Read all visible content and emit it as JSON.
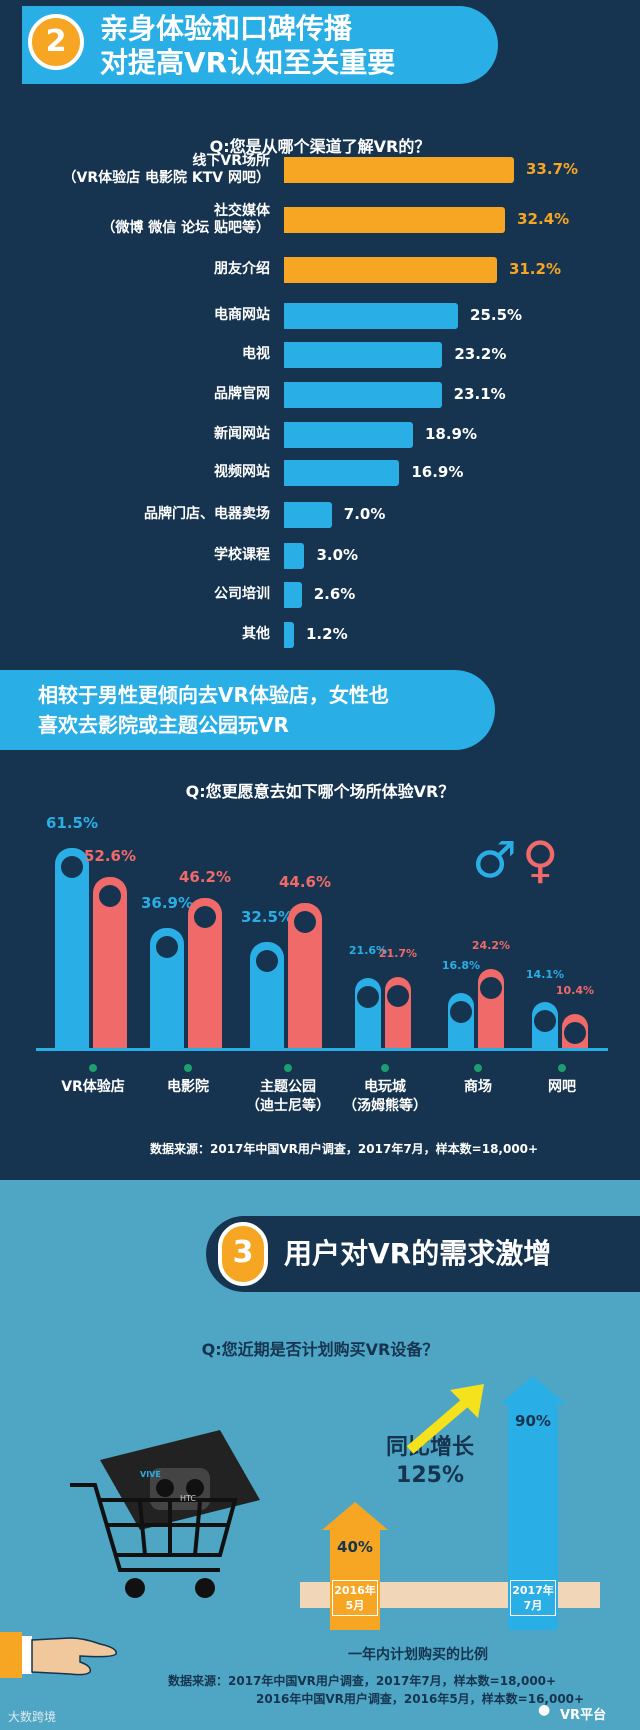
{
  "section2": {
    "number": "2",
    "title_line1": "亲身体验和口碑传播",
    "title_line2": "对提高VR认知至关重要"
  },
  "chart1_question": "Q:您是从哪个渠道了解VR的？",
  "chart1": {
    "type": "bar",
    "orientation": "horizontal",
    "categories": [
      [
        "线下VR场所",
        "（VR体验店 电影院 KTV 网吧）"
      ],
      [
        "社交媒体",
        "（微博 微信 论坛 贴吧等）"
      ],
      [
        "朋友介绍"
      ],
      [
        "电商网站"
      ],
      [
        "电视"
      ],
      [
        "品牌官网"
      ],
      [
        "新闻网站"
      ],
      [
        "视频网站"
      ],
      [
        "品牌门店、电器卖场"
      ],
      [
        "学校课程"
      ],
      [
        "公司培训"
      ],
      [
        "其他"
      ]
    ],
    "values": [
      33.7,
      32.4,
      31.2,
      25.5,
      23.2,
      23.1,
      18.9,
      16.9,
      7.0,
      3.0,
      2.6,
      1.2
    ],
    "labels": [
      "33.7%",
      "32.4%",
      "31.2%",
      "25.5%",
      "23.2%",
      "23.1%",
      "18.9%",
      "16.9%",
      "7.0%",
      "3.0%",
      "2.6%",
      "1.2%"
    ],
    "highlight_count": 3,
    "colors": {
      "highlight": "#f6a623",
      "normal": "#2aaee6"
    }
  },
  "banner2": {
    "line1": "相较于男性更倾向去VR体验店，女性也",
    "line2": "喜欢去影院或主题公园玩VR"
  },
  "chart2_question": "Q:您更愿意去如下哪个场所体验VR？",
  "chart2": {
    "type": "bar",
    "categories": [
      [
        "VR体验店"
      ],
      [
        "电影院"
      ],
      [
        "主题公园",
        "（迪士尼等）"
      ],
      [
        "电玩城",
        "（汤姆熊等）"
      ],
      [
        "商场"
      ],
      [
        "网吧"
      ]
    ],
    "series": [
      {
        "values": [
          61.5,
          36.9,
          32.5,
          21.6,
          16.8,
          14.1
        ],
        "labels": [
          "61.5%",
          "36.9%",
          "32.5%",
          "21.6%",
          "16.8%",
          "14.1%"
        ],
        "color": "#2aaee6"
      },
      {
        "values": [
          52.6,
          46.2,
          44.6,
          21.7,
          24.2,
          10.4
        ],
        "labels": [
          "52.6%",
          "46.2%",
          "44.6%",
          "21.7%",
          "24.2%",
          "10.4%"
        ],
        "color": "#f06a6a"
      }
    ],
    "male_symbol": "♂",
    "female_symbol": "♀",
    "source": "数据来源：2017年中国VR用户调查，2017年7月，样本数=18,000+"
  },
  "section3": {
    "number": "3",
    "title": "用户对VR的需求激增"
  },
  "chart3_question": "Q:您近期是否计划购买VR设备？",
  "chart3": {
    "type": "bar",
    "categories": [
      [
        "2016年",
        "5月"
      ],
      [
        "2017年",
        "7月"
      ]
    ],
    "values": [
      40,
      90
    ],
    "labels": [
      "40%",
      "90%"
    ],
    "colors": [
      "#f6a623",
      "#2aaee6"
    ],
    "growth_line1": "同比增长",
    "growth_line2": "125%",
    "caption": "一年内计划购买的比例",
    "source_line1": "数据来源：2017年中国VR用户调查，2017年7月，样本数=18,000+",
    "source_line2": "2016年中国VR用户调查，2016年5月，样本数=16,000+"
  },
  "illustration": {
    "headset_brand": "VIVE",
    "maker": "HTC"
  },
  "watermark": {
    "left": "大数跨境",
    "right": "VR平台"
  }
}
